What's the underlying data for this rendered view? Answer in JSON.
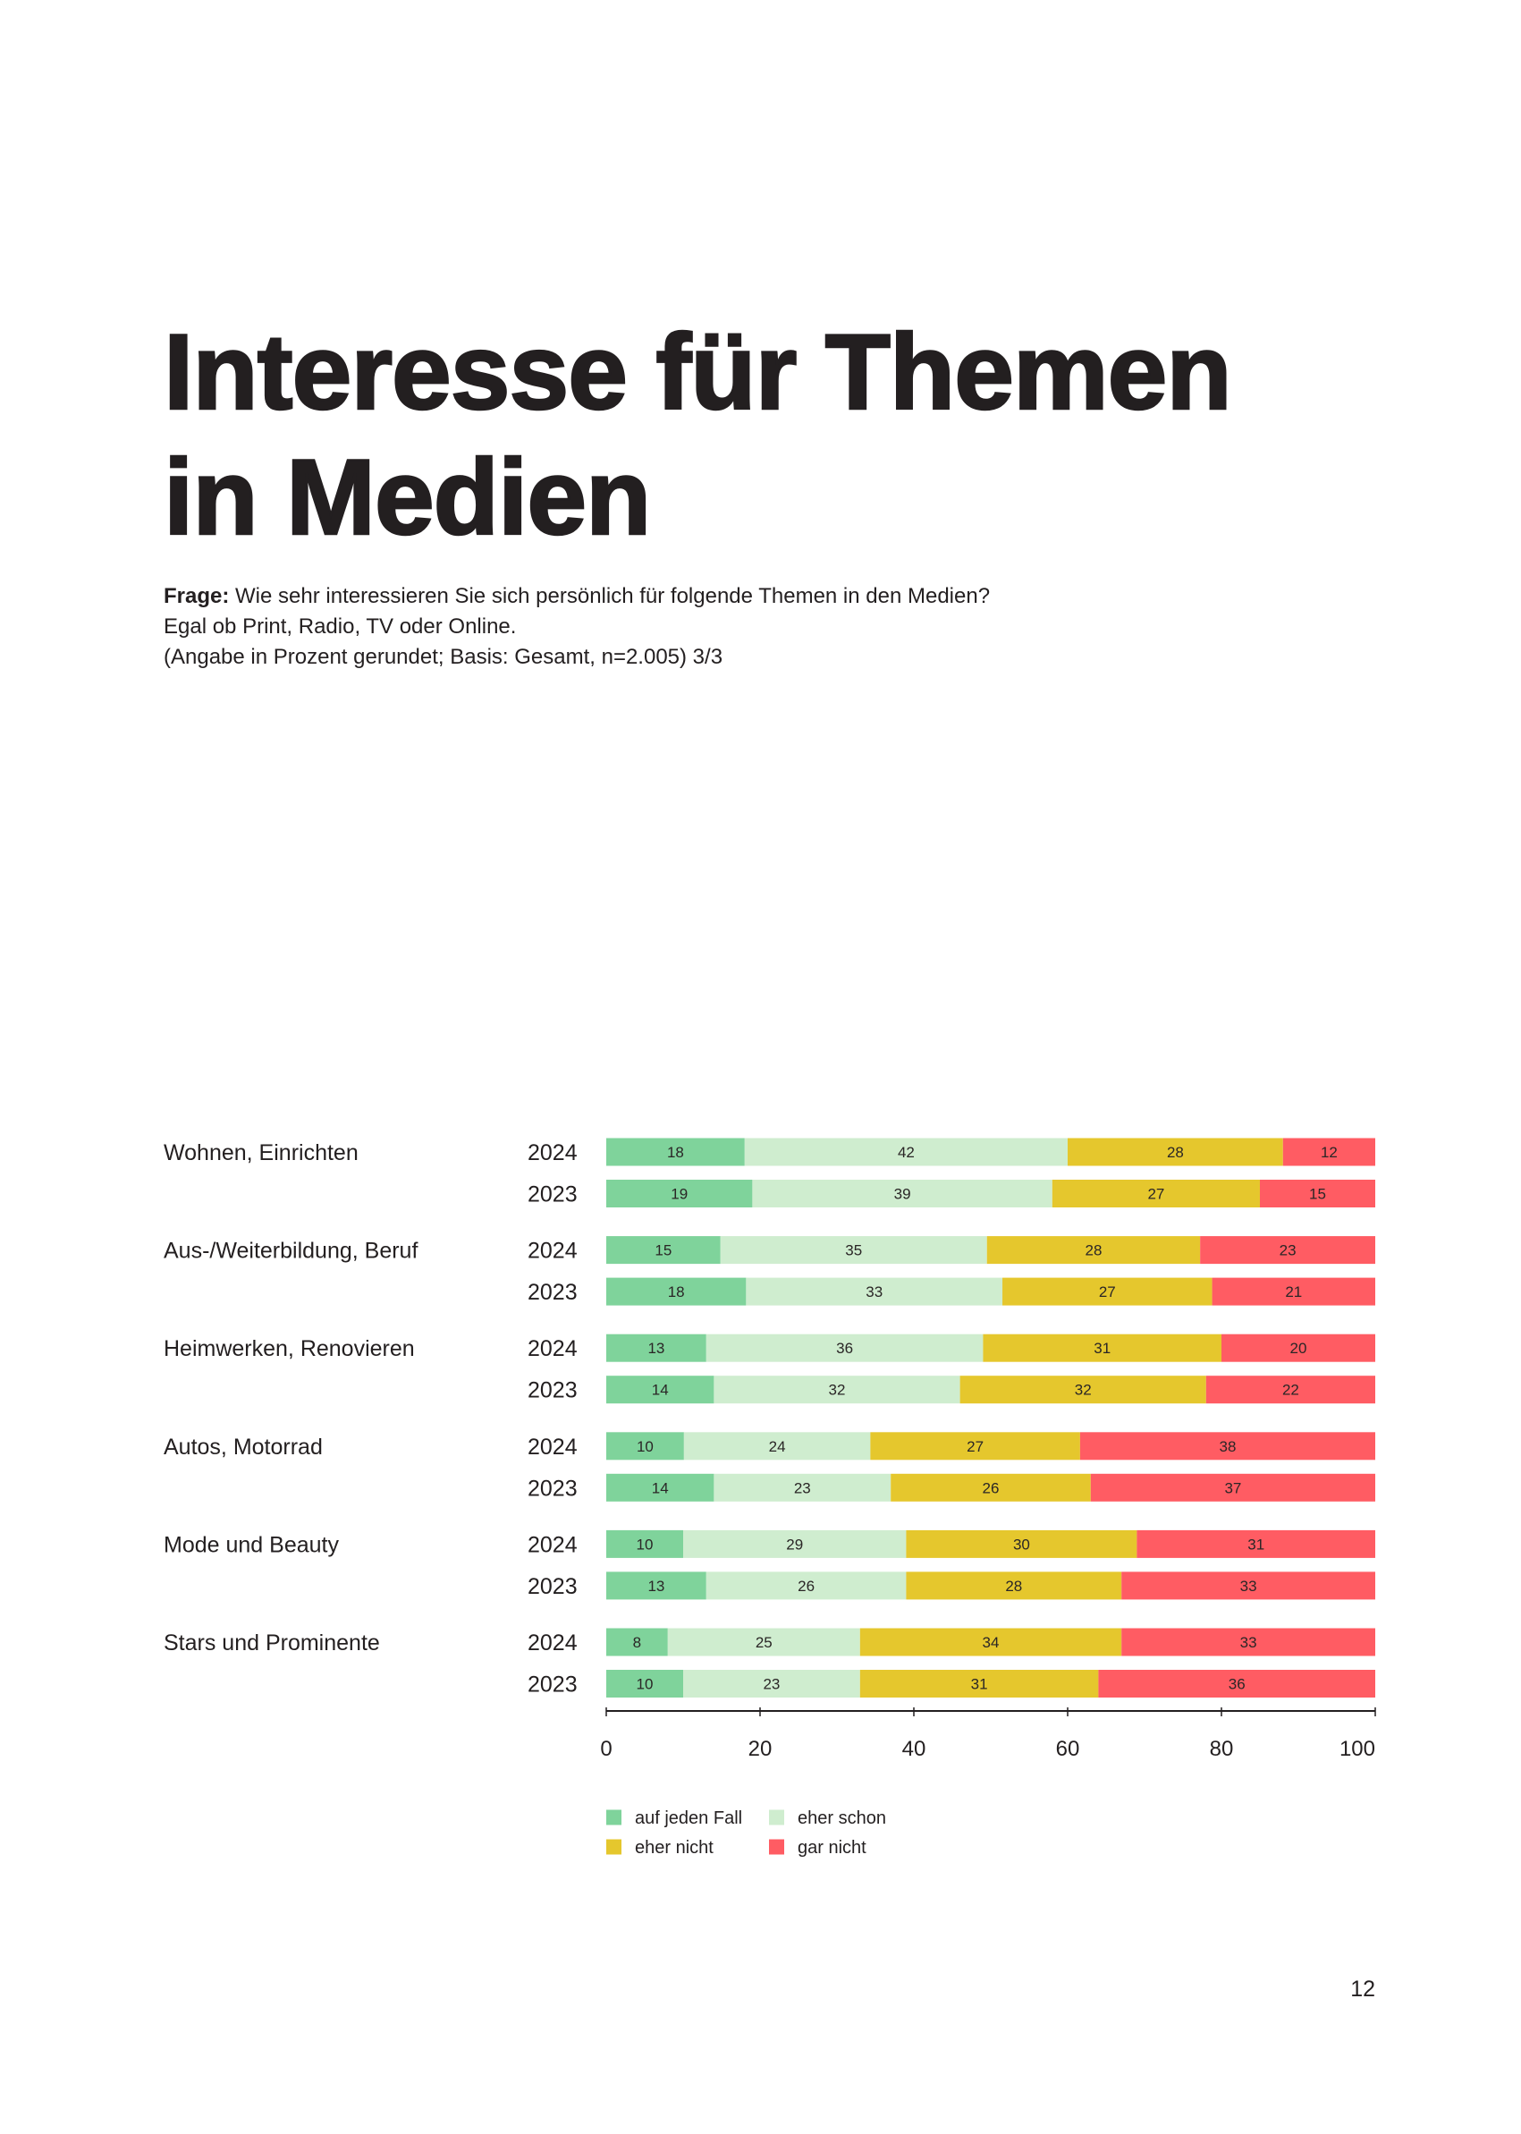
{
  "question": {
    "label": "Frage:",
    "text": "Wie sehr interessieren Sie sich persönlich für folgende Themen in den Medien?",
    "line2": "Egal ob Print, Radio, TV oder Online.",
    "note": "(Angabe in Prozent gerundet; Basis: Gesamt, n=2.005) 3/3"
  },
  "page_number": "12",
  "chart_data": {
    "type": "bar",
    "orientation": "horizontal",
    "stacked": true,
    "title": [
      "Interesse für Themen",
      "in Medien"
    ],
    "xlabel": "",
    "ylabel": "",
    "xlim": [
      0,
      100
    ],
    "xticks": [
      0,
      20,
      40,
      60,
      80,
      100
    ],
    "grid": false,
    "legend_position": "bottom-left",
    "series": [
      {
        "name": "auf jeden Fall",
        "color": "#7fd39b"
      },
      {
        "name": "eher schon",
        "color": "#cfedcf"
      },
      {
        "name": "eher nicht",
        "color": "#e5c72d"
      },
      {
        "name": "gar nicht",
        "color": "#ff5c63"
      }
    ],
    "groups": [
      {
        "category": "Wohnen, Einrichten",
        "rows": [
          {
            "year": "2024",
            "values": [
              18,
              42,
              28,
              12
            ]
          },
          {
            "year": "2023",
            "values": [
              19,
              39,
              27,
              15
            ]
          }
        ]
      },
      {
        "category": "Aus-/Weiterbildung, Beruf",
        "rows": [
          {
            "year": "2024",
            "values": [
              15,
              35,
              28,
              23
            ]
          },
          {
            "year": "2023",
            "values": [
              18,
              33,
              27,
              21
            ]
          }
        ]
      },
      {
        "category": "Heimwerken, Renovieren",
        "rows": [
          {
            "year": "2024",
            "values": [
              13,
              36,
              31,
              20
            ]
          },
          {
            "year": "2023",
            "values": [
              14,
              32,
              32,
              22
            ]
          }
        ]
      },
      {
        "category": "Autos, Motorrad",
        "rows": [
          {
            "year": "2024",
            "values": [
              10,
              24,
              27,
              38
            ]
          },
          {
            "year": "2023",
            "values": [
              14,
              23,
              26,
              37
            ]
          }
        ]
      },
      {
        "category": "Mode und Beauty",
        "rows": [
          {
            "year": "2024",
            "values": [
              10,
              29,
              30,
              31
            ]
          },
          {
            "year": "2023",
            "values": [
              13,
              26,
              28,
              33
            ]
          }
        ]
      },
      {
        "category": "Stars und Prominente",
        "rows": [
          {
            "year": "2024",
            "values": [
              8,
              25,
              34,
              33
            ]
          },
          {
            "year": "2023",
            "values": [
              10,
              23,
              31,
              36
            ]
          }
        ]
      }
    ]
  }
}
